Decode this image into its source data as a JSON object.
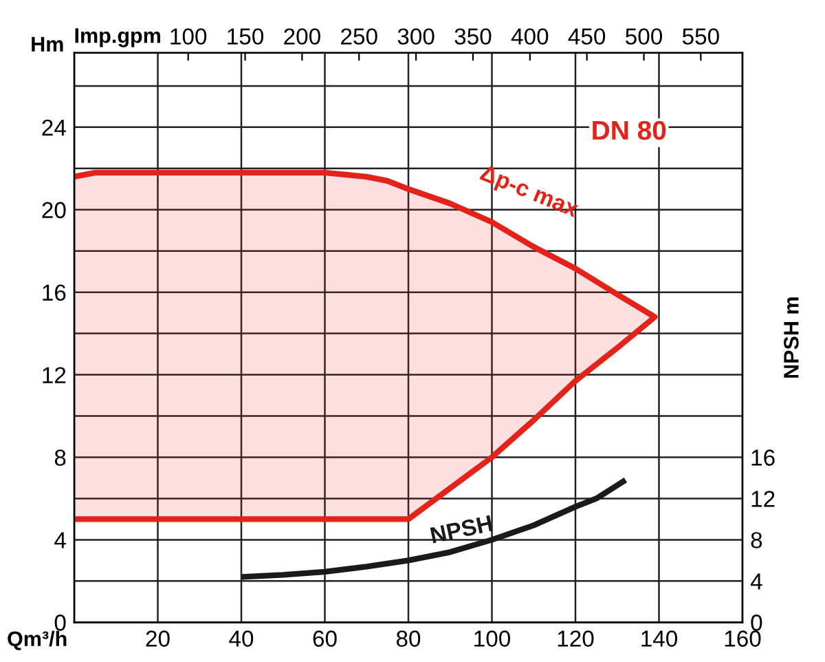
{
  "chart_data": {
    "type": "area",
    "xlabel": "Qm³/h",
    "ylabel": "Hm",
    "x2label": "Imp.gpm",
    "y2label": "NPSH m",
    "xlim": [
      0,
      160
    ],
    "xticks": [
      {
        "value": 0,
        "label": null
      },
      20,
      40,
      60,
      80,
      100,
      120,
      140,
      160
    ],
    "ylim": [
      0,
      27.6
    ],
    "yticks": [
      0,
      {
        "value": 2,
        "label": null
      },
      4,
      {
        "value": 6,
        "label": null
      },
      8,
      {
        "value": 10,
        "label": null
      },
      12,
      {
        "value": 14,
        "label": null
      },
      16,
      {
        "value": 18,
        "label": null
      },
      20,
      {
        "value": 22,
        "label": null
      },
      24,
      {
        "value": 26,
        "label": null
      }
    ],
    "x2lim": [
      0,
      586.6
    ],
    "x2ticks": [
      100,
      150,
      200,
      250,
      300,
      350,
      400,
      450,
      500,
      550
    ],
    "y2lim": [
      0,
      55.2
    ],
    "y2ticks": [
      0,
      4,
      8,
      12,
      16
    ],
    "grid": true,
    "series": [
      {
        "color": "#e32219",
        "x": [
          0,
          5,
          10,
          20,
          40,
          60,
          70,
          75,
          80,
          90,
          100,
          110,
          120,
          130,
          139,
          130,
          120,
          110,
          100,
          90,
          80,
          60,
          40,
          20,
          0
        ],
        "values": [
          21.6,
          21.8,
          21.8,
          21.8,
          21.8,
          21.8,
          21.6,
          21.4,
          21.0,
          20.3,
          19.4,
          18.2,
          17.15,
          15.9,
          14.8,
          13.3,
          11.7,
          9.8,
          8.0,
          6.5,
          5,
          5,
          5,
          5,
          5
        ]
      },
      {
        "type": "line",
        "axis": "y2",
        "color": "#1a1a1a",
        "x": [
          40,
          50,
          60,
          70,
          80,
          90,
          100,
          110,
          120,
          125,
          132
        ],
        "values": [
          4.4,
          4.6,
          4.9,
          5.4,
          6.0,
          6.8,
          8.0,
          9.4,
          11.2,
          12.0,
          13.8
        ]
      }
    ],
    "annotations": [
      "Δp-c max",
      "NPSH",
      "DN 80"
    ]
  }
}
